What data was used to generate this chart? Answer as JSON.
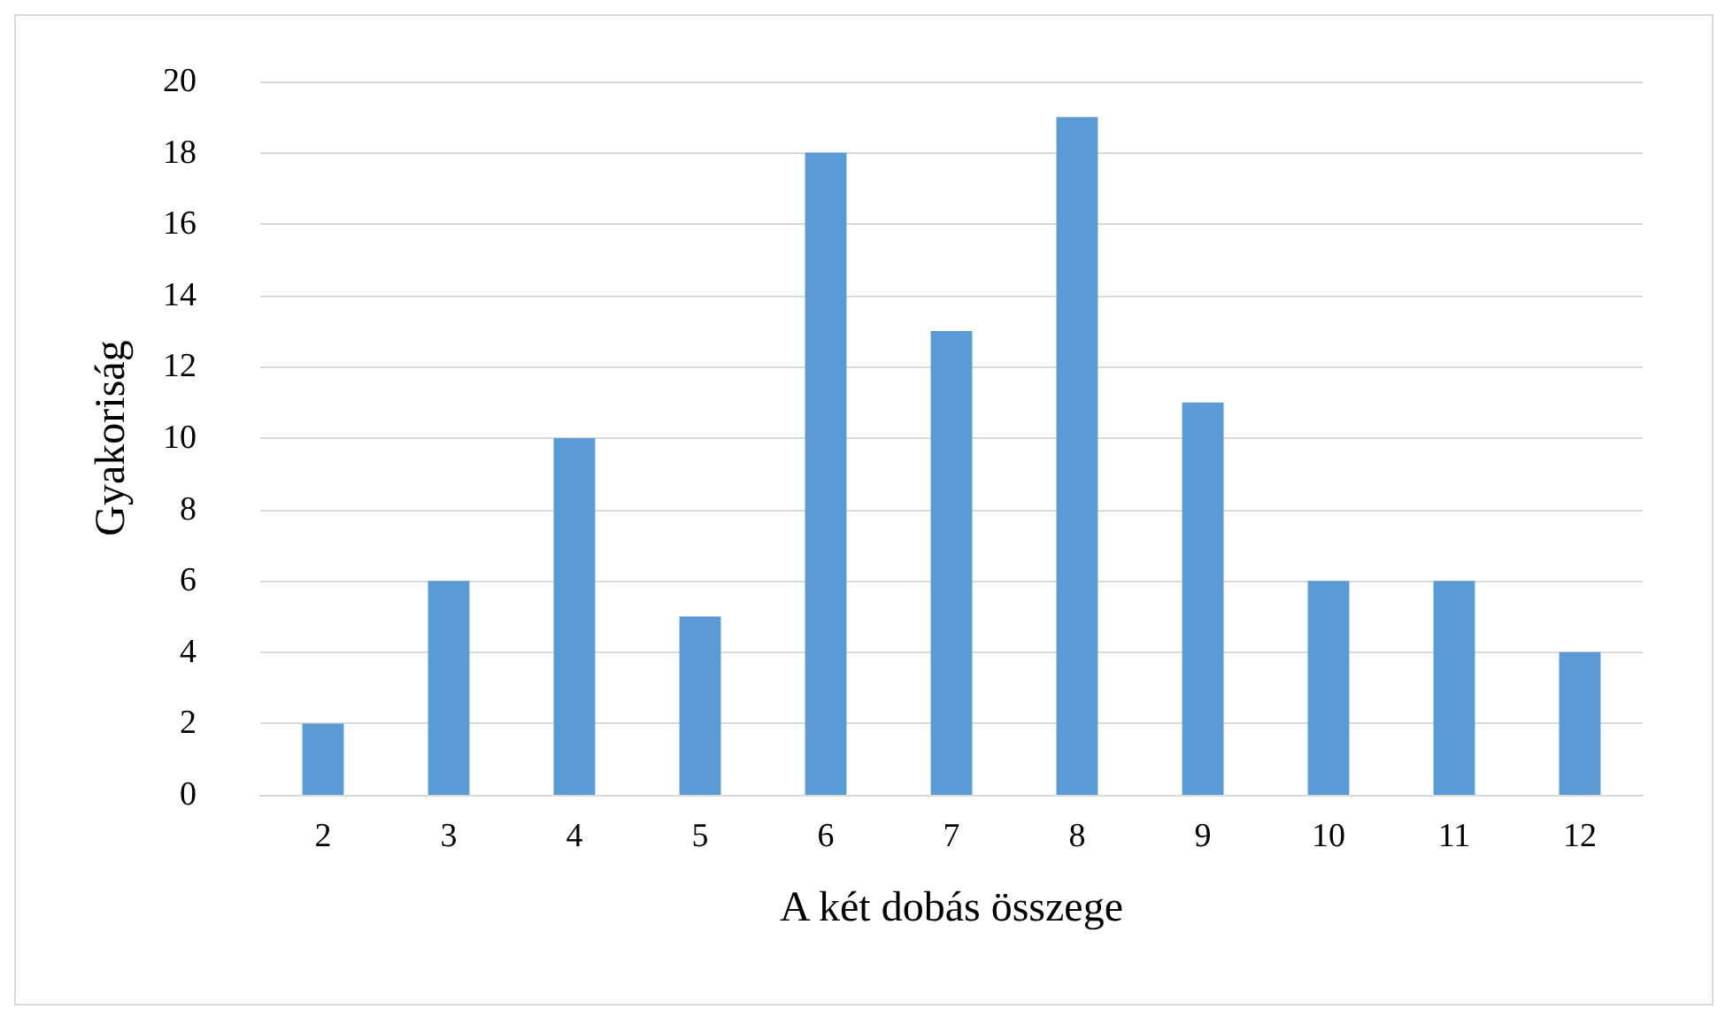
{
  "chart_data": {
    "type": "bar",
    "xlabel": "A két dobás összege",
    "ylabel": "Gyakoriság",
    "categories": [
      "2",
      "3",
      "4",
      "5",
      "6",
      "7",
      "8",
      "9",
      "10",
      "11",
      "12"
    ],
    "values": [
      2,
      6,
      10,
      5,
      18,
      13,
      19,
      11,
      6,
      6,
      4
    ],
    "color": "#5b9bd5",
    "ylim": [
      0,
      20
    ],
    "yticks": [
      0,
      2,
      4,
      6,
      8,
      10,
      12,
      14,
      16,
      18,
      20
    ],
    "grid": "y",
    "legend": false
  }
}
